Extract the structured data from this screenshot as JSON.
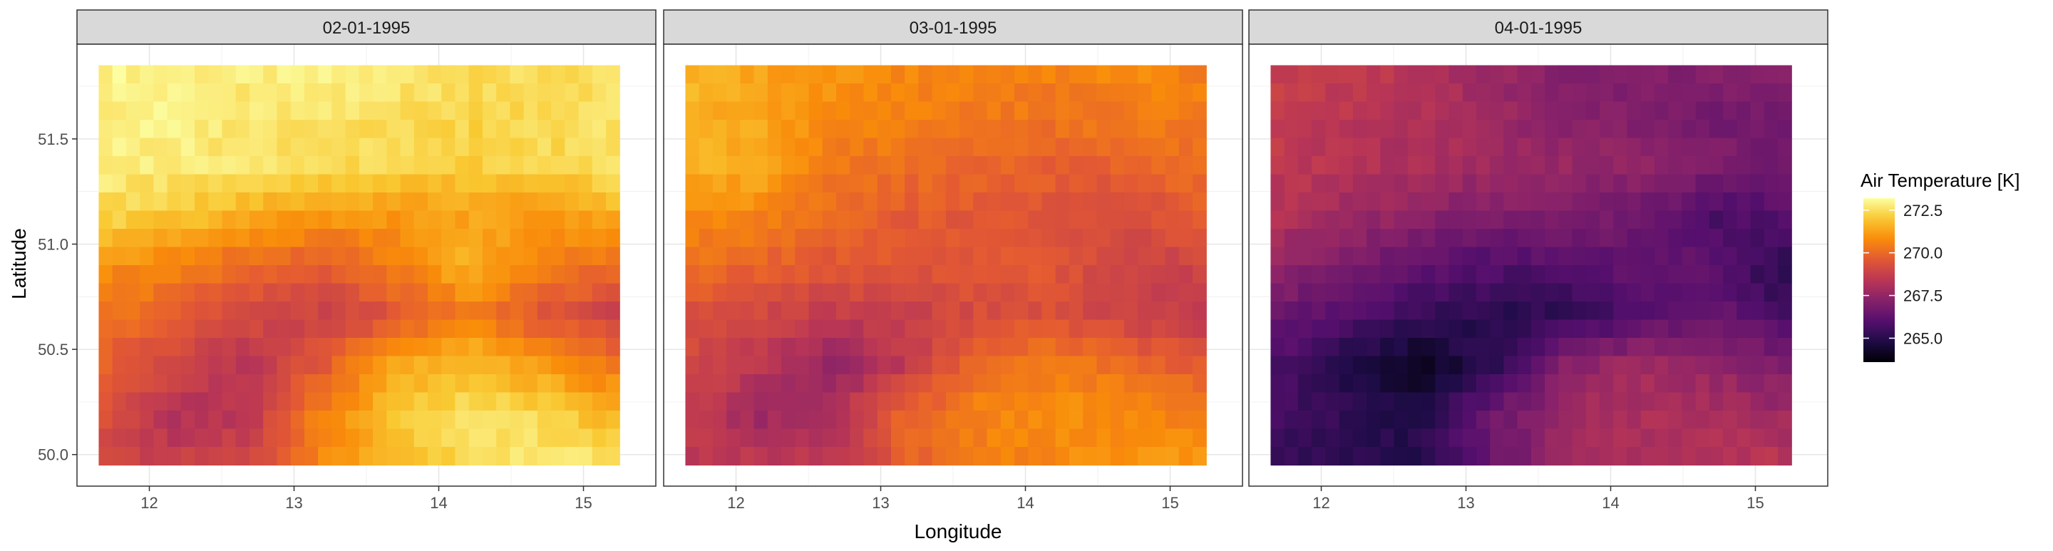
{
  "chart_data": {
    "type": "heatmap",
    "title": "",
    "xlabel": "Longitude",
    "ylabel": "Latitude",
    "facets": [
      "02-01-1995",
      "03-01-1995",
      "04-01-1995"
    ],
    "x_ticks": [
      12,
      13,
      14,
      15
    ],
    "x_tick_labels": [
      "12",
      "13",
      "14",
      "15"
    ],
    "y_ticks": [
      50.0,
      50.5,
      51.0,
      51.5
    ],
    "y_tick_labels": [
      "50.0",
      "50.5",
      "51.0",
      "51.5"
    ],
    "xlim": [
      11.5,
      15.5
    ],
    "ylim": [
      49.85,
      51.95
    ],
    "grid": true,
    "x_range": [
      11.65,
      15.25
    ],
    "y_range": [
      49.95,
      51.85
    ],
    "legend": {
      "title": "Air Temperature [K]",
      "position": "right",
      "min": 263.6,
      "max": 273.2,
      "breaks": [
        272.5,
        270.0,
        267.5,
        265.0
      ],
      "break_labels": [
        "272.5",
        "270.0",
        "267.5",
        "265.0"
      ],
      "palette": "inferno"
    },
    "panels": [
      {
        "date": "02-01-1995",
        "grid": [
          [
            273.0,
            272.9,
            272.8,
            272.9,
            272.8,
            272.5,
            272.4,
            272.4
          ],
          [
            272.9,
            272.9,
            272.7,
            272.6,
            272.5,
            272.3,
            272.5,
            272.6
          ],
          [
            272.9,
            272.8,
            272.6,
            272.5,
            272.3,
            272.1,
            272.3,
            272.5
          ],
          [
            272.3,
            272.1,
            271.5,
            271.0,
            271.0,
            271.3,
            271.0,
            271.6
          ],
          [
            270.9,
            270.5,
            270.0,
            269.6,
            270.6,
            271.6,
            270.4,
            270.0
          ],
          [
            270.3,
            269.8,
            269.2,
            268.8,
            269.5,
            270.5,
            269.5,
            268.8
          ],
          [
            269.8,
            269.0,
            268.3,
            269.6,
            271.4,
            271.8,
            271.0,
            270.3
          ],
          [
            269.4,
            268.2,
            268.4,
            270.6,
            271.9,
            272.6,
            272.3,
            271.5
          ],
          [
            269.0,
            268.8,
            269.1,
            270.7,
            271.8,
            272.4,
            272.8,
            272.8
          ]
        ]
      },
      {
        "date": "03-01-1995",
        "grid": [
          [
            271.6,
            271.3,
            271.0,
            270.7,
            270.5,
            270.6,
            270.8,
            270.5
          ],
          [
            271.6,
            271.3,
            270.8,
            270.6,
            270.4,
            270.3,
            270.4,
            270.4
          ],
          [
            271.5,
            271.5,
            270.4,
            270.1,
            270.0,
            269.8,
            269.9,
            270.1
          ],
          [
            270.9,
            270.6,
            270.0,
            269.7,
            269.5,
            269.4,
            269.2,
            269.8
          ],
          [
            270.1,
            269.9,
            269.6,
            269.5,
            269.7,
            269.5,
            268.9,
            268.9
          ],
          [
            269.4,
            269.0,
            268.6,
            268.8,
            269.2,
            269.3,
            268.8,
            268.6
          ],
          [
            269.0,
            268.4,
            267.5,
            268.6,
            270.2,
            270.5,
            270.1,
            269.6
          ],
          [
            268.7,
            267.7,
            268.2,
            270.0,
            270.6,
            270.9,
            270.7,
            270.4
          ],
          [
            268.4,
            268.6,
            268.5,
            269.8,
            270.5,
            270.7,
            271.0,
            271.2
          ]
        ]
      },
      {
        "date": "04-01-1995",
        "grid": [
          [
            268.8,
            268.6,
            268.3,
            267.6,
            267.2,
            267.0,
            267.2,
            267.2
          ],
          [
            268.7,
            268.4,
            268.2,
            267.8,
            267.2,
            267.0,
            266.8,
            266.7
          ],
          [
            268.6,
            268.3,
            268.0,
            267.7,
            267.6,
            267.4,
            267.0,
            266.5
          ],
          [
            268.2,
            267.8,
            267.3,
            267.1,
            267.0,
            266.6,
            265.8,
            266.1
          ],
          [
            267.5,
            267.0,
            266.3,
            265.9,
            266.0,
            266.4,
            266.1,
            264.9
          ],
          [
            266.6,
            266.0,
            265.4,
            265.0,
            265.2,
            266.0,
            266.5,
            265.6
          ],
          [
            265.9,
            264.9,
            264.1,
            265.2,
            267.3,
            267.8,
            267.5,
            267.0
          ],
          [
            265.6,
            265.3,
            264.8,
            266.6,
            267.8,
            268.1,
            268.0,
            267.7
          ],
          [
            265.4,
            265.0,
            265.1,
            266.5,
            267.7,
            268.1,
            268.4,
            268.4
          ]
        ]
      }
    ]
  }
}
